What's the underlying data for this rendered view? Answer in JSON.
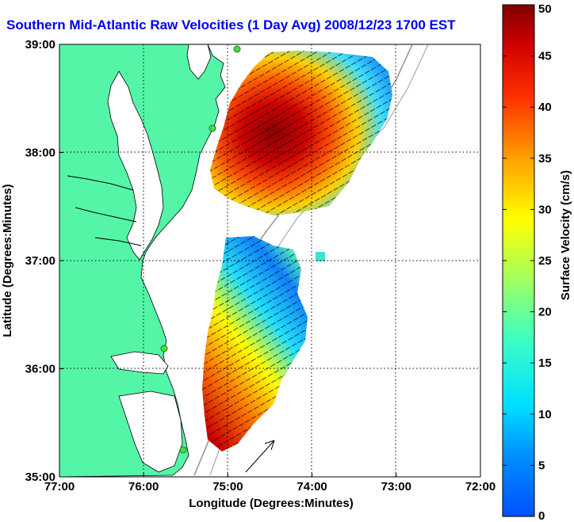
{
  "title": "Southern Mid-Atlantic Raw Velocities (1 Day Avg) 2008/12/23 1700 EST",
  "xaxis": {
    "label": "Longitude (Degrees:Minutes)",
    "ticks": [
      "77:00",
      "76:00",
      "75:00",
      "74:00",
      "73:00",
      "72:00"
    ]
  },
  "yaxis": {
    "label": "Latitude (Degrees:Minutes)",
    "ticks": [
      "39:00",
      "38:00",
      "37:00",
      "36:00",
      "35:00"
    ]
  },
  "colorbar": {
    "label": "Surface Velocity (cm/s)",
    "ticks": [
      "50",
      "45",
      "40",
      "35",
      "30",
      "25",
      "20",
      "15",
      "10",
      "5",
      "0"
    ],
    "range": [
      0,
      50
    ]
  },
  "colors": {
    "land": "#55f5a8",
    "title": "#0000ee",
    "stations": "#44dd44"
  }
}
